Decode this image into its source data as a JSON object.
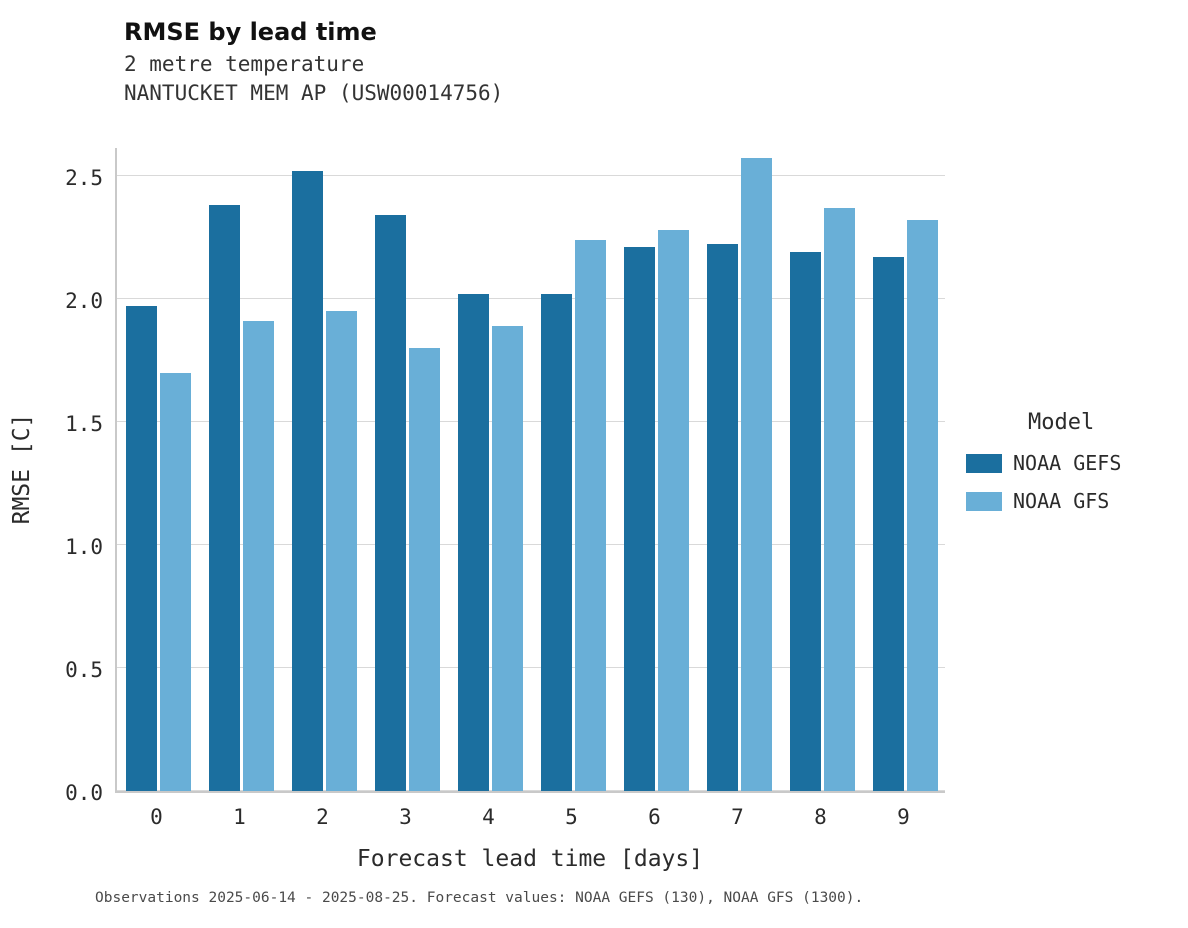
{
  "chart_data": {
    "type": "bar",
    "title": "RMSE by lead time",
    "subtitle_lines": [
      "2 metre temperature",
      "NANTUCKET MEM AP (USW00014756)"
    ],
    "xlabel": "Forecast lead time [days]",
    "ylabel": "RMSE [C]",
    "categories": [
      "0",
      "1",
      "2",
      "3",
      "4",
      "5",
      "6",
      "7",
      "8",
      "9"
    ],
    "series": [
      {
        "name": "NOAA GEFS",
        "color": "#1b6f9f",
        "values": [
          1.97,
          2.38,
          2.52,
          2.34,
          2.02,
          2.02,
          2.21,
          2.22,
          2.19,
          2.17
        ]
      },
      {
        "name": "NOAA GFS",
        "color": "#69afd7",
        "values": [
          1.7,
          1.91,
          1.95,
          1.8,
          1.89,
          2.24,
          2.28,
          2.57,
          2.37,
          2.32
        ]
      }
    ],
    "yticks": [
      0.0,
      0.5,
      1.0,
      1.5,
      2.0,
      2.5
    ],
    "ytick_labels": [
      "0.0",
      "0.5",
      "1.0",
      "1.5",
      "2.0",
      "2.5"
    ],
    "ylim": [
      0,
      2.62
    ],
    "grid": "horizontal",
    "legend": {
      "title": "Model",
      "position": "right",
      "entries": [
        "NOAA GEFS",
        "NOAA GFS"
      ]
    },
    "caption": "Observations 2025-06-14 - 2025-08-25. Forecast values: NOAA GEFS (130), NOAA GFS (1300)."
  }
}
